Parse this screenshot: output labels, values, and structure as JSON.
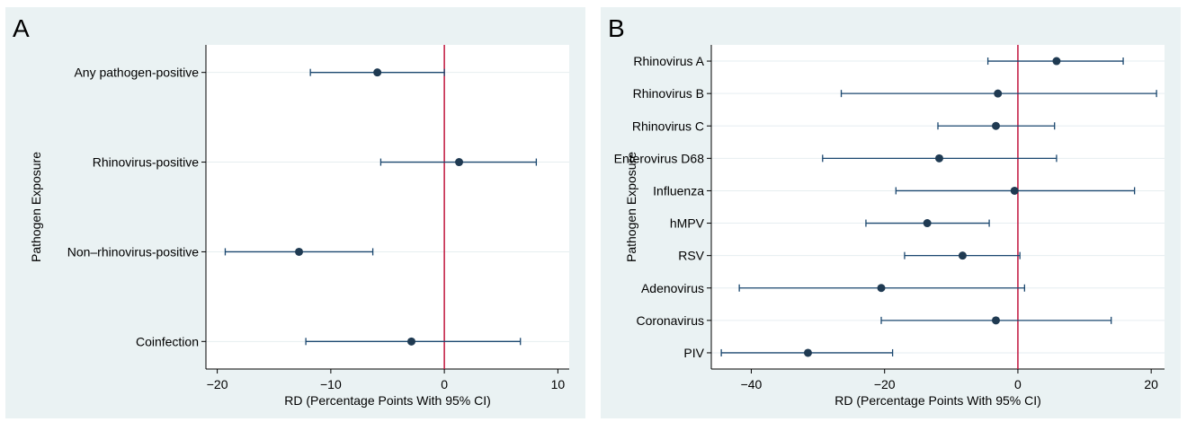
{
  "chart_data": [
    {
      "panel": "A",
      "type": "scatter",
      "subtype": "forest-plot",
      "xlabel": "RD (Percentage Points With 95% CI)",
      "ylabel": "Pathogen Exposure",
      "xlim": [
        -21,
        11
      ],
      "xticks": [
        -20,
        -10,
        0,
        10
      ],
      "reference_line": 0,
      "reference_color": "#c0143c",
      "point_color": "#1a476f",
      "categories": [
        "Any pathogen-positive",
        "Rhinovirus-positive",
        "Non–rhinovirus-positive",
        "Coinfection"
      ],
      "estimates": [
        -5.9,
        1.3,
        -12.8,
        -2.9
      ],
      "ci_lower": [
        -11.8,
        -5.6,
        -19.3,
        -12.2
      ],
      "ci_upper": [
        0.0,
        8.1,
        -6.3,
        6.7
      ]
    },
    {
      "panel": "B",
      "type": "scatter",
      "subtype": "forest-plot",
      "xlabel": "RD (Percentage Points With 95% CI)",
      "ylabel": "Pathogen Exposure",
      "xlim": [
        -46,
        22
      ],
      "xticks": [
        -40,
        -20,
        0,
        20
      ],
      "reference_line": 0,
      "reference_color": "#c0143c",
      "point_color": "#1a476f",
      "categories": [
        "Rhinovirus A",
        "Rhinovirus B",
        "Rhinovirus C",
        "Enterovirus D68",
        "Influenza",
        "hMPV",
        "RSV",
        "Adenovirus",
        "Coronavirus",
        "PIV"
      ],
      "estimates": [
        5.8,
        -3.0,
        -3.3,
        -11.8,
        -0.5,
        -13.6,
        -8.3,
        -20.5,
        -3.3,
        -31.5
      ],
      "ci_lower": [
        -4.5,
        -26.5,
        -12.0,
        -29.3,
        -18.3,
        -22.8,
        -17.0,
        -41.8,
        -20.5,
        -44.5
      ],
      "ci_upper": [
        15.8,
        20.8,
        5.5,
        5.8,
        17.5,
        -4.3,
        0.3,
        1.0,
        14.0,
        -18.8
      ]
    }
  ]
}
